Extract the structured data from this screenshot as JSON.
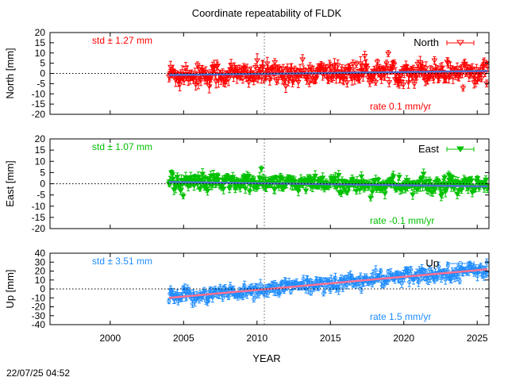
{
  "chart_data": {
    "type": "scatter",
    "title": "Coordinate repeatability of FLDK",
    "xlabel": "YEAR",
    "x_ticks": [
      2000,
      2005,
      2010,
      2015,
      2020,
      2025
    ],
    "xlim": [
      1995.9,
      2025.8
    ],
    "data_start_year": 2004.0,
    "data_end_year": 2025.7,
    "event_line_year": 2010.5,
    "zero_line": "dotted",
    "grid": false,
    "legend_position": "top-right",
    "timestamp": "22/07/25 04:52",
    "panels": [
      {
        "key": "north",
        "series_name": "North",
        "ylabel": "North [mm]",
        "ylim": [
          -20,
          20
        ],
        "y_ticks": [
          20,
          15,
          10,
          5,
          0,
          -5,
          -10,
          -15,
          -20
        ],
        "color": "#ff0000",
        "fit_color": "#4f6fd0",
        "marker": "triangle-down-open",
        "std_label": "std ± 1.27 mm",
        "rate_label": "rate  0.1 mm/yr",
        "rate_mm_per_yr": 0.1,
        "std_mm": 1.27,
        "trend": [
          {
            "x": 2004.0,
            "y": -0.8
          },
          {
            "x": 2025.7,
            "y": 1.2
          }
        ],
        "spread_mm": 5.5
      },
      {
        "key": "east",
        "series_name": "East",
        "ylabel": "East [mm]",
        "ylim": [
          -20,
          20
        ],
        "y_ticks": [
          20,
          15,
          10,
          5,
          0,
          -5,
          -10,
          -15,
          -20
        ],
        "color": "#00c000",
        "fit_color": "#4f6fd0",
        "marker": "triangle-down-filled",
        "std_label": "std ± 1.07 mm",
        "rate_label": "rate -0.1 mm/yr",
        "rate_mm_per_yr": -0.1,
        "std_mm": 1.07,
        "trend": [
          {
            "x": 2004.0,
            "y": 0.8
          },
          {
            "x": 2025.7,
            "y": -1.2
          }
        ],
        "spread_mm": 4.0
      },
      {
        "key": "up",
        "series_name": "Up",
        "ylabel": "Up [mm]",
        "ylim": [
          -40,
          40
        ],
        "y_ticks": [
          40,
          30,
          20,
          10,
          0,
          -10,
          -20,
          -30,
          -40
        ],
        "color": "#1e8cff",
        "fit_color": "#ff6f8f",
        "marker": "circle-open",
        "std_label": "std ± 3.51 mm",
        "rate_label": "rate  1.5 mm/yr",
        "rate_mm_per_yr": 1.5,
        "std_mm": 3.51,
        "trend": [
          {
            "x": 2004.0,
            "y": -10
          },
          {
            "x": 2025.7,
            "y": 22
          }
        ],
        "spread_mm": 9.0
      }
    ]
  }
}
